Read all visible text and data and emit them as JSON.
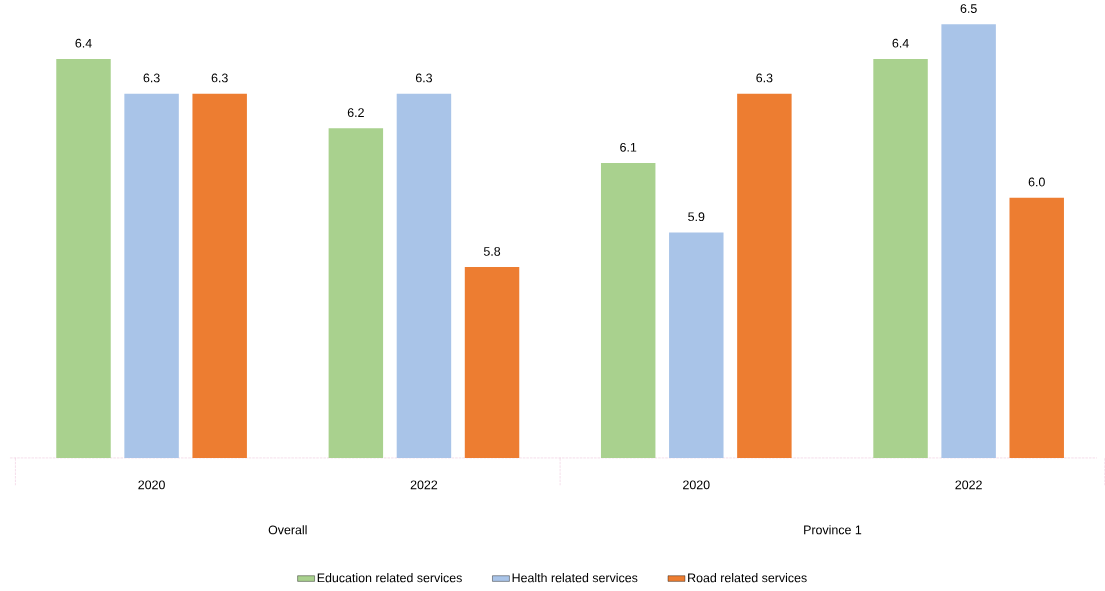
{
  "chart_data": {
    "type": "bar",
    "categories": [
      "2020",
      "2022",
      "2020",
      "2022"
    ],
    "series": [
      {
        "name": "Education related services",
        "color": "#a9d18e",
        "values": [
          6.4,
          6.2,
          6.1,
          6.4
        ],
        "value_labels": [
          "6.4",
          "6.2",
          "6.1",
          "6.4"
        ]
      },
      {
        "name": "Health related services",
        "color": "#a9c4e8",
        "values": [
          6.3,
          6.3,
          5.9,
          6.5
        ],
        "value_labels": [
          "6.3",
          "6.3",
          "5.9",
          "6.5"
        ]
      },
      {
        "name": "Road  related services",
        "color": "#ed7d31",
        "values": [
          6.3,
          5.8,
          6.3,
          6.0
        ],
        "value_labels": [
          "6.3",
          "5.8",
          "6.3",
          "6.0"
        ]
      }
    ],
    "ylim": [
      5.25,
      6.5
    ],
    "legend": "bottom",
    "annotations": [
      "Overall",
      "Province 1"
    ]
  }
}
